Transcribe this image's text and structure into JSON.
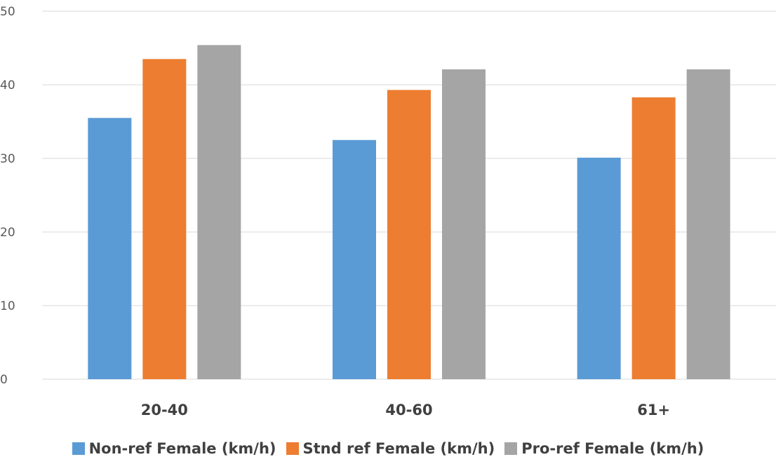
{
  "chart_data": {
    "type": "bar",
    "categories": [
      "20-40",
      "40-60",
      "61+"
    ],
    "series": [
      {
        "name": "Non-ref Female (km/h)",
        "color": "#5b9bd5",
        "values": [
          35.5,
          32.5,
          30.1
        ]
      },
      {
        "name": "Stnd ref Female (km/h)",
        "color": "#ed7d31",
        "values": [
          43.5,
          39.3,
          38.3
        ]
      },
      {
        "name": "Pro-ref Female (km/h)",
        "color": "#a5a5a5",
        "values": [
          45.4,
          42.1,
          42.1
        ]
      }
    ],
    "ylim": [
      0,
      50
    ],
    "yticks": [
      0,
      10,
      20,
      30,
      40,
      50
    ],
    "grid": true,
    "legend_position": "bottom",
    "gridline_color": "#d9d9d9"
  }
}
